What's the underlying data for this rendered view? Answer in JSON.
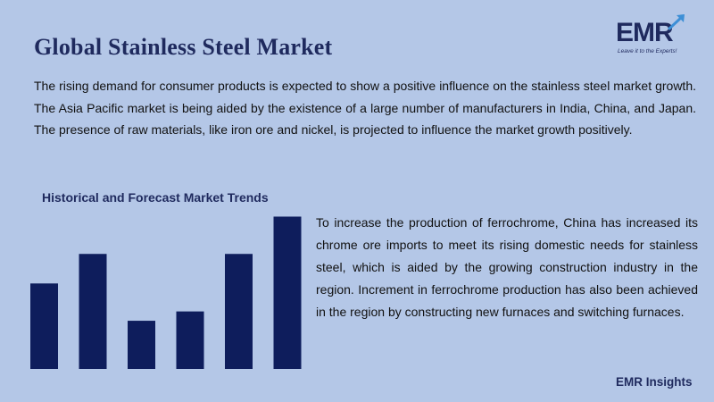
{
  "header": {
    "title": "Global Stainless Steel Market"
  },
  "logo": {
    "text": "EMR",
    "tagline": "Leave it to the Experts!"
  },
  "intro": "The rising demand for consumer products is expected to show a positive influence on the stainless steel market growth. The Asia Pacific market is being aided by the existence of a large number of manufacturers in India, China, and Japan. The presence of raw materials, like iron ore and nickel, is projected to influence the market growth positively.",
  "side_text": "To increase the production of ferrochrome, China has increased its chrome ore imports to meet its rising domestic needs for stainless steel, which is aided by the growing construction industry in the region. Increment in ferrochrome production has also been achieved in the region by constructing new furnaces and switching furnaces.",
  "footer": "EMR Insights",
  "colors": {
    "background": "#b4c7e7",
    "bar": "#0e1d5c",
    "accent": "#1f2a5e"
  },
  "chart_data": {
    "type": "bar",
    "title": "Historical and Forecast Market Trends",
    "categories": [
      "",
      "",
      "",
      "",
      "",
      ""
    ],
    "values": [
      55,
      74,
      31,
      37,
      74,
      98
    ],
    "ylim": [
      0,
      100
    ],
    "grid": false,
    "legend": "none"
  }
}
